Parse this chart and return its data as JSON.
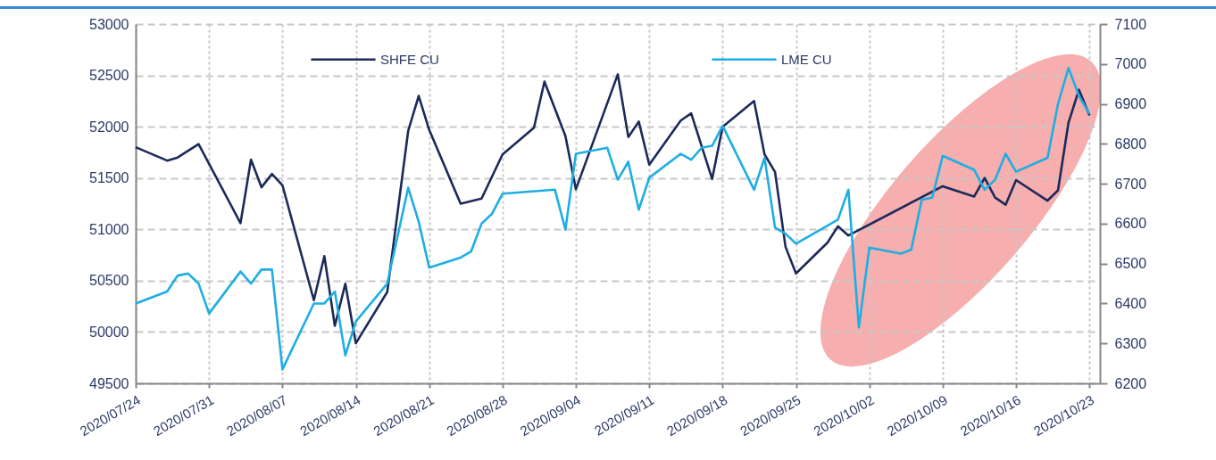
{
  "chart_data": {
    "type": "line",
    "xlim": [
      "2020-07-24",
      "2020-10-24"
    ],
    "xticks": [
      {
        "value": "2020-07-24",
        "label": "2020/07/24"
      },
      {
        "value": "2020-07-31",
        "label": "2020/07/31"
      },
      {
        "value": "2020-08-07",
        "label": "2020/08/07"
      },
      {
        "value": "2020-08-14",
        "label": "2020/08/14"
      },
      {
        "value": "2020-08-21",
        "label": "2020/08/21"
      },
      {
        "value": "2020-08-28",
        "label": "2020/08/28"
      },
      {
        "value": "2020-09-04",
        "label": "2020/09/04"
      },
      {
        "value": "2020-09-11",
        "label": "2020/09/11"
      },
      {
        "value": "2020-09-18",
        "label": "2020/09/18"
      },
      {
        "value": "2020-09-25",
        "label": "2020/09/25"
      },
      {
        "value": "2020-10-02",
        "label": "2020/10/02"
      },
      {
        "value": "2020-10-09",
        "label": "2020/10/09"
      },
      {
        "value": "2020-10-16",
        "label": "2020/10/16"
      },
      {
        "value": "2020-10-23",
        "label": "2020/10/23"
      }
    ],
    "ylim": [
      49500,
      53000
    ],
    "yticks": [
      49500,
      50000,
      50500,
      51000,
      51500,
      52000,
      52500,
      53000
    ],
    "y2lim": [
      6200,
      7100
    ],
    "y2ticks": [
      6200,
      6300,
      6400,
      6500,
      6600,
      6700,
      6800,
      6900,
      7000,
      7100
    ],
    "grid": true,
    "legend": "top",
    "line_style": "solid",
    "series": [
      {
        "name": "SHFE CU",
        "color": "#1c2a5a",
        "x": [
          "2020-07-24",
          "2020-07-27",
          "2020-07-28",
          "2020-07-30",
          "2020-08-03",
          "2020-08-04",
          "2020-08-05",
          "2020-08-06",
          "2020-08-07",
          "2020-08-10",
          "2020-08-11",
          "2020-08-12",
          "2020-08-13",
          "2020-08-14",
          "2020-08-17",
          "2020-08-19",
          "2020-08-20",
          "2020-08-21",
          "2020-08-24",
          "2020-08-26",
          "2020-08-28",
          "2020-08-31",
          "2020-09-01",
          "2020-09-03",
          "2020-09-04",
          "2020-09-08",
          "2020-09-09",
          "2020-09-10",
          "2020-09-11",
          "2020-09-14",
          "2020-09-15",
          "2020-09-17",
          "2020-09-18",
          "2020-09-21",
          "2020-09-22",
          "2020-09-23",
          "2020-09-24",
          "2020-09-25",
          "2020-09-28",
          "2020-09-29",
          "2020-09-30",
          "2020-10-09",
          "2020-10-12",
          "2020-10-13",
          "2020-10-14",
          "2020-10-15",
          "2020-10-16",
          "2020-10-19",
          "2020-10-20",
          "2020-10-21",
          "2020-10-22",
          "2020-10-23"
        ],
        "values": [
          51800,
          51670,
          51700,
          51830,
          51060,
          51680,
          51410,
          51540,
          51430,
          50310,
          50740,
          50060,
          50470,
          49890,
          50390,
          51960,
          52300,
          51970,
          51250,
          51300,
          51730,
          51990,
          52440,
          51910,
          51390,
          52510,
          51900,
          52050,
          51630,
          52060,
          52130,
          51490,
          52000,
          52250,
          51730,
          51560,
          50830,
          50570,
          50870,
          51030,
          50940,
          51420,
          51320,
          51500,
          51310,
          51240,
          51480,
          51280,
          51380,
          52040,
          52360,
          52110
        ]
      },
      {
        "name": "LME CU",
        "color": "#1eaee3",
        "axis": "y2",
        "x": [
          "2020-07-24",
          "2020-07-27",
          "2020-07-28",
          "2020-07-29",
          "2020-07-30",
          "2020-07-31",
          "2020-08-03",
          "2020-08-04",
          "2020-08-05",
          "2020-08-06",
          "2020-08-07",
          "2020-08-10",
          "2020-08-11",
          "2020-08-12",
          "2020-08-13",
          "2020-08-14",
          "2020-08-17",
          "2020-08-19",
          "2020-08-20",
          "2020-08-21",
          "2020-08-24",
          "2020-08-25",
          "2020-08-26",
          "2020-08-27",
          "2020-08-28",
          "2020-09-02",
          "2020-09-03",
          "2020-09-04",
          "2020-09-07",
          "2020-09-08",
          "2020-09-09",
          "2020-09-10",
          "2020-09-11",
          "2020-09-14",
          "2020-09-15",
          "2020-09-16",
          "2020-09-17",
          "2020-09-18",
          "2020-09-21",
          "2020-09-22",
          "2020-09-23",
          "2020-09-24",
          "2020-09-25",
          "2020-09-29",
          "2020-09-30",
          "2020-10-01",
          "2020-10-02",
          "2020-10-05",
          "2020-10-06",
          "2020-10-07",
          "2020-10-08",
          "2020-10-09",
          "2020-10-12",
          "2020-10-13",
          "2020-10-14",
          "2020-10-15",
          "2020-10-16",
          "2020-10-19",
          "2020-10-20",
          "2020-10-21",
          "2020-10-22",
          "2020-10-23"
        ],
        "values": [
          6400,
          6430,
          6470,
          6475,
          6450,
          6375,
          6480,
          6450,
          6485,
          6485,
          6235,
          6400,
          6400,
          6430,
          6270,
          6355,
          6450,
          6690,
          6605,
          6490,
          6515,
          6530,
          6600,
          6625,
          6675,
          6685,
          6585,
          6775,
          6790,
          6710,
          6755,
          6635,
          6715,
          6775,
          6760,
          6790,
          6795,
          6845,
          6685,
          6765,
          6590,
          6575,
          6550,
          6610,
          6685,
          6340,
          6540,
          6525,
          6535,
          6660,
          6665,
          6770,
          6735,
          6685,
          6710,
          6775,
          6730,
          6765,
          6900,
          6990,
          6920,
          6875
        ]
      }
    ]
  }
}
